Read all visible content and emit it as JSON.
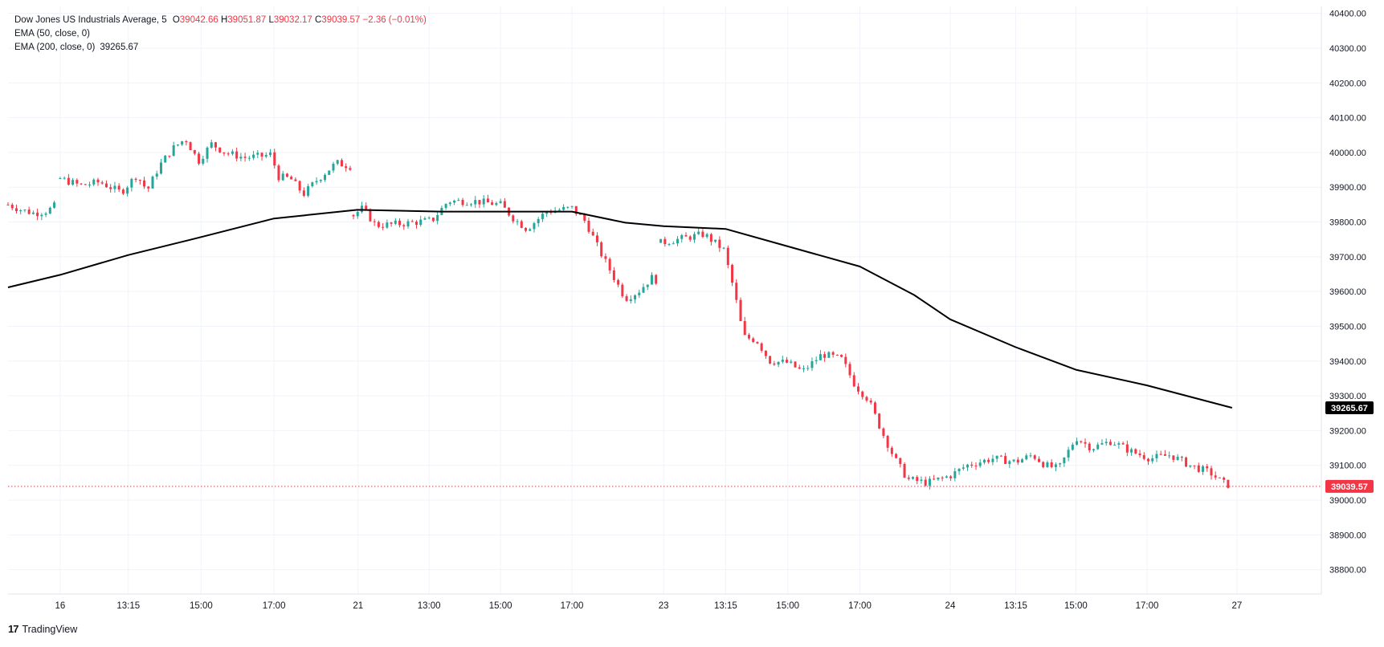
{
  "legend": {
    "symbol": "Dow Jones US Industrials Average, 5",
    "open_label": "O",
    "open": "39042.66",
    "high_label": "H",
    "high": "39051.87",
    "low_label": "L",
    "low": "39032.17",
    "close_label": "C",
    "close": "39039.57",
    "change": "−2.36 (−0.01%)",
    "ema50": "EMA (50, close, 0)",
    "ema200": "EMA (200, close, 0)",
    "ema200_value": "39265.67"
  },
  "brand": {
    "logo": "17",
    "name": "TradingView"
  },
  "colors": {
    "up": "#26a69a",
    "down": "#f23645",
    "ema": "#000000",
    "grid": "#f0f3fa",
    "axis_text": "#131722",
    "price_line": "#f23645"
  },
  "chart_data": {
    "type": "candlestick",
    "title": "Dow Jones US Industrials Average, 5",
    "interval": "5",
    "ylim": [
      38730,
      40420
    ],
    "yticks": [
      38800,
      38900,
      39000,
      39100,
      39200,
      39300,
      39400,
      39500,
      39600,
      39700,
      39800,
      39900,
      40000,
      40100,
      40200,
      40300,
      40400
    ],
    "ytick_labels": [
      "38800.00",
      "38900.00",
      "39000.00",
      "39100.00",
      "39200.00",
      "39300.00",
      "39400.00",
      "39500.00",
      "39600.00",
      "39700.00",
      "39800.00",
      "39900.00",
      "40000.00",
      "40100.00",
      "40200.00",
      "40300.00",
      "40400.00"
    ],
    "xticks": [
      {
        "pos": 0.0397,
        "label": "16"
      },
      {
        "pos": 0.0916,
        "label": "13:15"
      },
      {
        "pos": 0.147,
        "label": "15:00"
      },
      {
        "pos": 0.2025,
        "label": "17:00"
      },
      {
        "pos": 0.2665,
        "label": "21"
      },
      {
        "pos": 0.3206,
        "label": "13:00"
      },
      {
        "pos": 0.375,
        "label": "15:00"
      },
      {
        "pos": 0.4294,
        "label": "17:00"
      },
      {
        "pos": 0.4992,
        "label": "23"
      },
      {
        "pos": 0.5464,
        "label": "13:15"
      },
      {
        "pos": 0.5937,
        "label": "15:00"
      },
      {
        "pos": 0.6486,
        "label": "17:00"
      },
      {
        "pos": 0.7174,
        "label": "24"
      },
      {
        "pos": 0.7673,
        "label": "13:15"
      },
      {
        "pos": 0.8131,
        "label": "15:00"
      },
      {
        "pos": 0.8673,
        "label": "17:00"
      },
      {
        "pos": 0.9357,
        "label": "27"
      }
    ],
    "ema200": [
      [
        0.0,
        39612
      ],
      [
        0.0397,
        39648
      ],
      [
        0.0916,
        39705
      ],
      [
        0.14,
        39750
      ],
      [
        0.2025,
        39810
      ],
      [
        0.266,
        39835
      ],
      [
        0.33,
        39830
      ],
      [
        0.4294,
        39830
      ],
      [
        0.47,
        39798
      ],
      [
        0.4992,
        39788
      ],
      [
        0.5464,
        39780
      ],
      [
        0.5937,
        39730
      ],
      [
        0.6486,
        39672
      ],
      [
        0.69,
        39590
      ],
      [
        0.7174,
        39520
      ],
      [
        0.7673,
        39440
      ],
      [
        0.8131,
        39375
      ],
      [
        0.8673,
        39330
      ],
      [
        0.932,
        39265.67
      ]
    ],
    "close_segments": [
      {
        "x0": 0.0,
        "x1": 0.037,
        "points": [
          [
            0.0,
            39850
          ],
          [
            0.01,
            39835
          ],
          [
            0.02,
            39825
          ],
          [
            0.03,
            39832
          ],
          [
            0.037,
            39850
          ]
        ]
      },
      {
        "x0": 0.0397,
        "x1": 0.261,
        "points": [
          [
            0.0397,
            39925
          ],
          [
            0.055,
            39905
          ],
          [
            0.07,
            39915
          ],
          [
            0.086,
            39885
          ],
          [
            0.098,
            39935
          ],
          [
            0.106,
            39890
          ],
          [
            0.115,
            39960
          ],
          [
            0.125,
            40010
          ],
          [
            0.135,
            40040
          ],
          [
            0.145,
            39975
          ],
          [
            0.155,
            40025
          ],
          [
            0.165,
            40000
          ],
          [
            0.18,
            39985
          ],
          [
            0.195,
            39990
          ],
          [
            0.2,
            39995
          ],
          [
            0.206,
            39930
          ],
          [
            0.215,
            39925
          ],
          [
            0.225,
            39880
          ],
          [
            0.235,
            39920
          ],
          [
            0.25,
            39970
          ],
          [
            0.261,
            39960
          ]
        ]
      },
      {
        "x0": 0.263,
        "x1": 0.495,
        "points": [
          [
            0.263,
            39820
          ],
          [
            0.27,
            39840
          ],
          [
            0.28,
            39790
          ],
          [
            0.3,
            39795
          ],
          [
            0.323,
            39805
          ],
          [
            0.335,
            39860
          ],
          [
            0.355,
            39860
          ],
          [
            0.375,
            39850
          ],
          [
            0.385,
            39810
          ],
          [
            0.395,
            39780
          ],
          [
            0.41,
            39830
          ],
          [
            0.4294,
            39840
          ],
          [
            0.44,
            39800
          ],
          [
            0.45,
            39720
          ],
          [
            0.46,
            39650
          ],
          [
            0.47,
            39580
          ],
          [
            0.48,
            39600
          ],
          [
            0.49,
            39640
          ],
          [
            0.495,
            39630
          ]
        ]
      },
      {
        "x0": 0.497,
        "x1": 0.932,
        "points": [
          [
            0.497,
            39740
          ],
          [
            0.51,
            39750
          ],
          [
            0.53,
            39765
          ],
          [
            0.545,
            39720
          ],
          [
            0.553,
            39600
          ],
          [
            0.56,
            39470
          ],
          [
            0.57,
            39460
          ],
          [
            0.58,
            39400
          ],
          [
            0.5937,
            39395
          ],
          [
            0.605,
            39370
          ],
          [
            0.62,
            39420
          ],
          [
            0.635,
            39405
          ],
          [
            0.645,
            39330
          ],
          [
            0.655,
            39290
          ],
          [
            0.665,
            39200
          ],
          [
            0.675,
            39120
          ],
          [
            0.685,
            39060
          ],
          [
            0.7,
            39050
          ],
          [
            0.7174,
            39070
          ],
          [
            0.73,
            39100
          ],
          [
            0.75,
            39120
          ],
          [
            0.7673,
            39110
          ],
          [
            0.78,
            39130
          ],
          [
            0.79,
            39100
          ],
          [
            0.8,
            39090
          ],
          [
            0.8131,
            39180
          ],
          [
            0.825,
            39150
          ],
          [
            0.84,
            39170
          ],
          [
            0.855,
            39140
          ],
          [
            0.87,
            39120
          ],
          [
            0.885,
            39130
          ],
          [
            0.9,
            39100
          ],
          [
            0.915,
            39080
          ],
          [
            0.925,
            39050
          ],
          [
            0.932,
            39039.57
          ]
        ]
      }
    ],
    "last_price": 39039.57,
    "last_price_label": "39039.57",
    "ema200_label": "39265.67"
  }
}
